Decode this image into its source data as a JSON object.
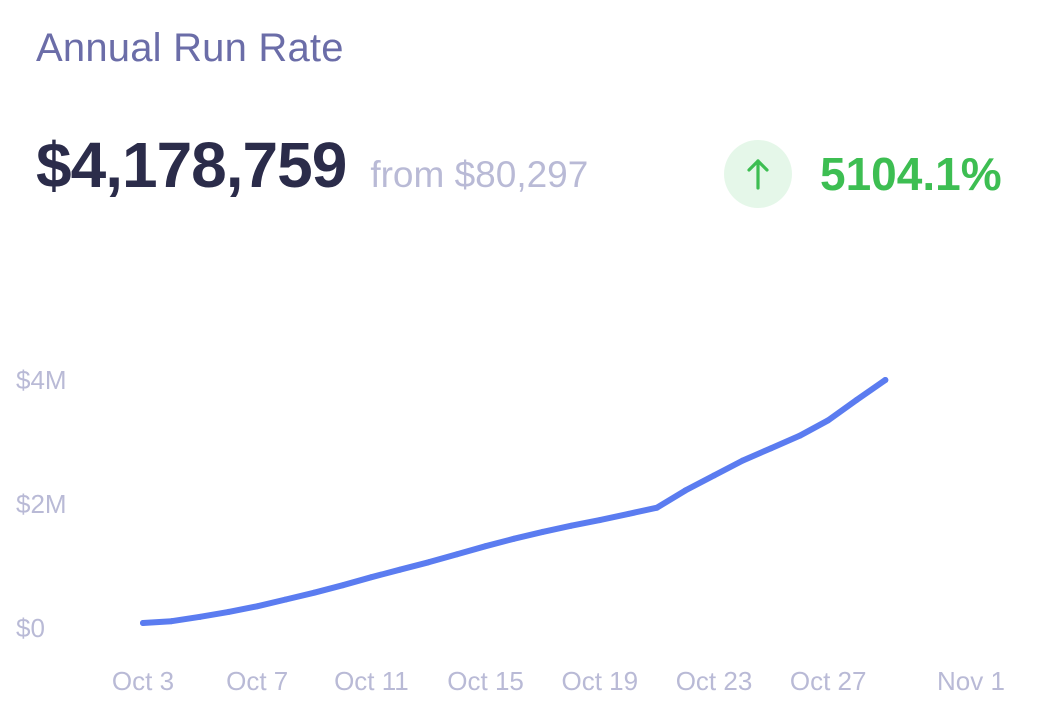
{
  "card": {
    "title": "Annual Run Rate",
    "value": "$4,178,759",
    "from_text": "from $80,297",
    "change_pct": "5104.1%",
    "change_direction_icon": "arrow-up-icon"
  },
  "colors": {
    "title": "#6b6da8",
    "value": "#2b2c4a",
    "muted": "#b9bad6",
    "line": "#5b7cf0",
    "positive": "#3dbe52",
    "positive_bg": "#e5f7e9"
  },
  "chart_data": {
    "type": "line",
    "title": "",
    "xlabel": "",
    "ylabel": "",
    "ylim": [
      0,
      4000000
    ],
    "y_ticks": [
      {
        "value": 0,
        "label": "$0"
      },
      {
        "value": 2000000,
        "label": "$2M"
      },
      {
        "value": 4000000,
        "label": "$4M"
      }
    ],
    "x_ticks": [
      "Oct 3",
      "Oct 7",
      "Oct 11",
      "Oct 15",
      "Oct 19",
      "Oct 23",
      "Oct 27",
      "Nov 1"
    ],
    "grid": false,
    "series": [
      {
        "values": [
          {
            "x": "Oct 3",
            "y": 80297
          },
          {
            "x": "Oct 4",
            "y": 110000
          },
          {
            "x": "Oct 5",
            "y": 180000
          },
          {
            "x": "Oct 6",
            "y": 260000
          },
          {
            "x": "Oct 7",
            "y": 350000
          },
          {
            "x": "Oct 8",
            "y": 460000
          },
          {
            "x": "Oct 9",
            "y": 570000
          },
          {
            "x": "Oct 10",
            "y": 690000
          },
          {
            "x": "Oct 11",
            "y": 820000
          },
          {
            "x": "Oct 12",
            "y": 940000
          },
          {
            "x": "Oct 13",
            "y": 1060000
          },
          {
            "x": "Oct 14",
            "y": 1190000
          },
          {
            "x": "Oct 15",
            "y": 1320000
          },
          {
            "x": "Oct 16",
            "y": 1440000
          },
          {
            "x": "Oct 17",
            "y": 1550000
          },
          {
            "x": "Oct 18",
            "y": 1650000
          },
          {
            "x": "Oct 19",
            "y": 1740000
          },
          {
            "x": "Oct 20",
            "y": 1840000
          },
          {
            "x": "Oct 21",
            "y": 1940000
          },
          {
            "x": "Oct 22",
            "y": 2220000
          },
          {
            "x": "Oct 23",
            "y": 2460000
          },
          {
            "x": "Oct 24",
            "y": 2700000
          },
          {
            "x": "Oct 25",
            "y": 2900000
          },
          {
            "x": "Oct 26",
            "y": 3100000
          },
          {
            "x": "Oct 27",
            "y": 3350000
          },
          {
            "x": "Oct 28",
            "y": 3680000
          },
          {
            "x": "Oct 29",
            "y": 4000000
          }
        ]
      }
    ]
  }
}
